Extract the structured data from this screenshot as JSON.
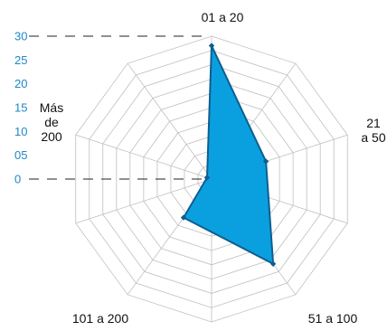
{
  "chart_data": {
    "type": "radar",
    "categories": [
      "01 a 20",
      "21 a 50",
      "51 a 100",
      "101 a 200",
      "Más de 200"
    ],
    "category_lines": [
      [
        "01 a 20"
      ],
      [
        "21",
        "a 50"
      ],
      [
        "51 a 100"
      ],
      [
        "101 a 200"
      ],
      [
        "Más",
        "de",
        "200"
      ]
    ],
    "series": [
      {
        "values": [
          28,
          12,
          22,
          10,
          1
        ]
      }
    ],
    "rlim": [
      0,
      30
    ],
    "r_ticks": [
      "0",
      "05",
      "10",
      "15",
      "20",
      "25",
      "30"
    ],
    "r_tick_values": [
      0,
      5,
      10,
      15,
      20,
      25,
      30
    ],
    "grid": true,
    "grid_shape": "decagon",
    "grid_rings": 10,
    "axis_count": 10,
    "legend": "none",
    "colors": {
      "fill": "#0aa0e0",
      "stroke": "#0f5e8e",
      "marker": "#0f5e8e",
      "grid": "#bfbfbf",
      "tick_text": "#1e88c9",
      "guide_dash": "#222222"
    }
  }
}
